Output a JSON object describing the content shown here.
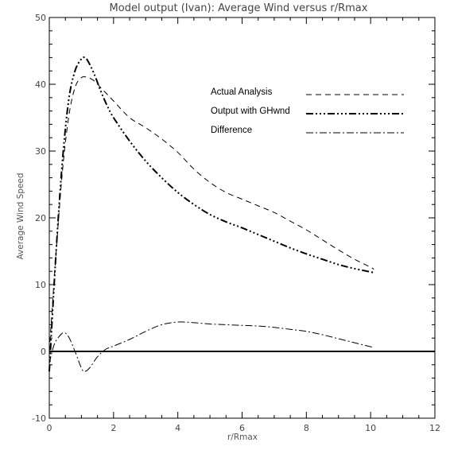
{
  "chart_data": {
    "type": "line",
    "title": "Model output (Ivan): Average Wind versus r/Rmax",
    "xlabel": "r/Rmax",
    "ylabel": "Average Wind Speed",
    "xlim": [
      0,
      12
    ],
    "ylim": [
      -10,
      50
    ],
    "xticks": [
      0,
      2,
      4,
      6,
      8,
      10,
      12
    ],
    "yticks": [
      -10,
      0,
      10,
      20,
      30,
      40,
      50
    ],
    "grid": false,
    "legend_position": "upper-right",
    "zero_line": 0,
    "series": [
      {
        "name": "Actual Analysis",
        "style": "dashed",
        "color": "#000000",
        "x": [
          0.0,
          0.2,
          0.4,
          0.6,
          0.8,
          1.0,
          1.2,
          1.4,
          1.6,
          1.8,
          2.0,
          2.5,
          3.0,
          3.5,
          4.0,
          4.5,
          5.0,
          5.5,
          6.0,
          6.5,
          7.0,
          7.5,
          8.0,
          8.5,
          9.0,
          9.5,
          10.0,
          10.1
        ],
        "y": [
          0,
          14.0,
          26.5,
          35.0,
          39.5,
          41.0,
          41.0,
          40.5,
          39.5,
          38.5,
          37.5,
          35.0,
          33.5,
          31.8,
          29.8,
          27.3,
          25.3,
          23.8,
          22.8,
          21.8,
          20.8,
          19.5,
          18.2,
          16.7,
          15.2,
          13.8,
          12.6,
          12.3
        ]
      },
      {
        "name": "Output with GHwnd",
        "style": "dash-dot-dot",
        "color": "#000000",
        "x": [
          0.0,
          0.2,
          0.4,
          0.6,
          0.8,
          1.0,
          1.1,
          1.2,
          1.4,
          1.6,
          1.8,
          2.0,
          2.5,
          3.0,
          3.5,
          4.0,
          4.5,
          5.0,
          5.5,
          6.0,
          6.5,
          7.0,
          7.5,
          8.0,
          8.5,
          9.0,
          9.5,
          10.0,
          10.1
        ],
        "y": [
          -3.0,
          14.0,
          28.0,
          37.5,
          42.0,
          43.8,
          44.0,
          43.5,
          41.5,
          39.0,
          36.8,
          35.0,
          31.5,
          28.5,
          26.0,
          23.8,
          22.0,
          20.5,
          19.4,
          18.5,
          17.5,
          16.5,
          15.5,
          14.6,
          13.8,
          13.0,
          12.4,
          11.9,
          11.8
        ]
      },
      {
        "name": "Difference",
        "style": "dash-dot",
        "color": "#000000",
        "x": [
          0.0,
          0.15,
          0.3,
          0.45,
          0.6,
          0.8,
          1.0,
          1.1,
          1.25,
          1.5,
          1.75,
          2.0,
          2.5,
          3.0,
          3.5,
          4.0,
          4.5,
          5.0,
          5.5,
          6.0,
          6.5,
          7.0,
          7.5,
          8.0,
          8.5,
          9.0,
          9.5,
          10.0,
          10.1
        ],
        "y": [
          -1.8,
          1.0,
          2.2,
          2.8,
          2.2,
          0.0,
          -2.5,
          -3.0,
          -2.5,
          -0.8,
          0.3,
          0.8,
          1.8,
          3.0,
          4.0,
          4.4,
          4.3,
          4.1,
          4.0,
          3.9,
          3.8,
          3.6,
          3.3,
          3.0,
          2.5,
          1.9,
          1.3,
          0.7,
          0.6
        ]
      }
    ]
  }
}
